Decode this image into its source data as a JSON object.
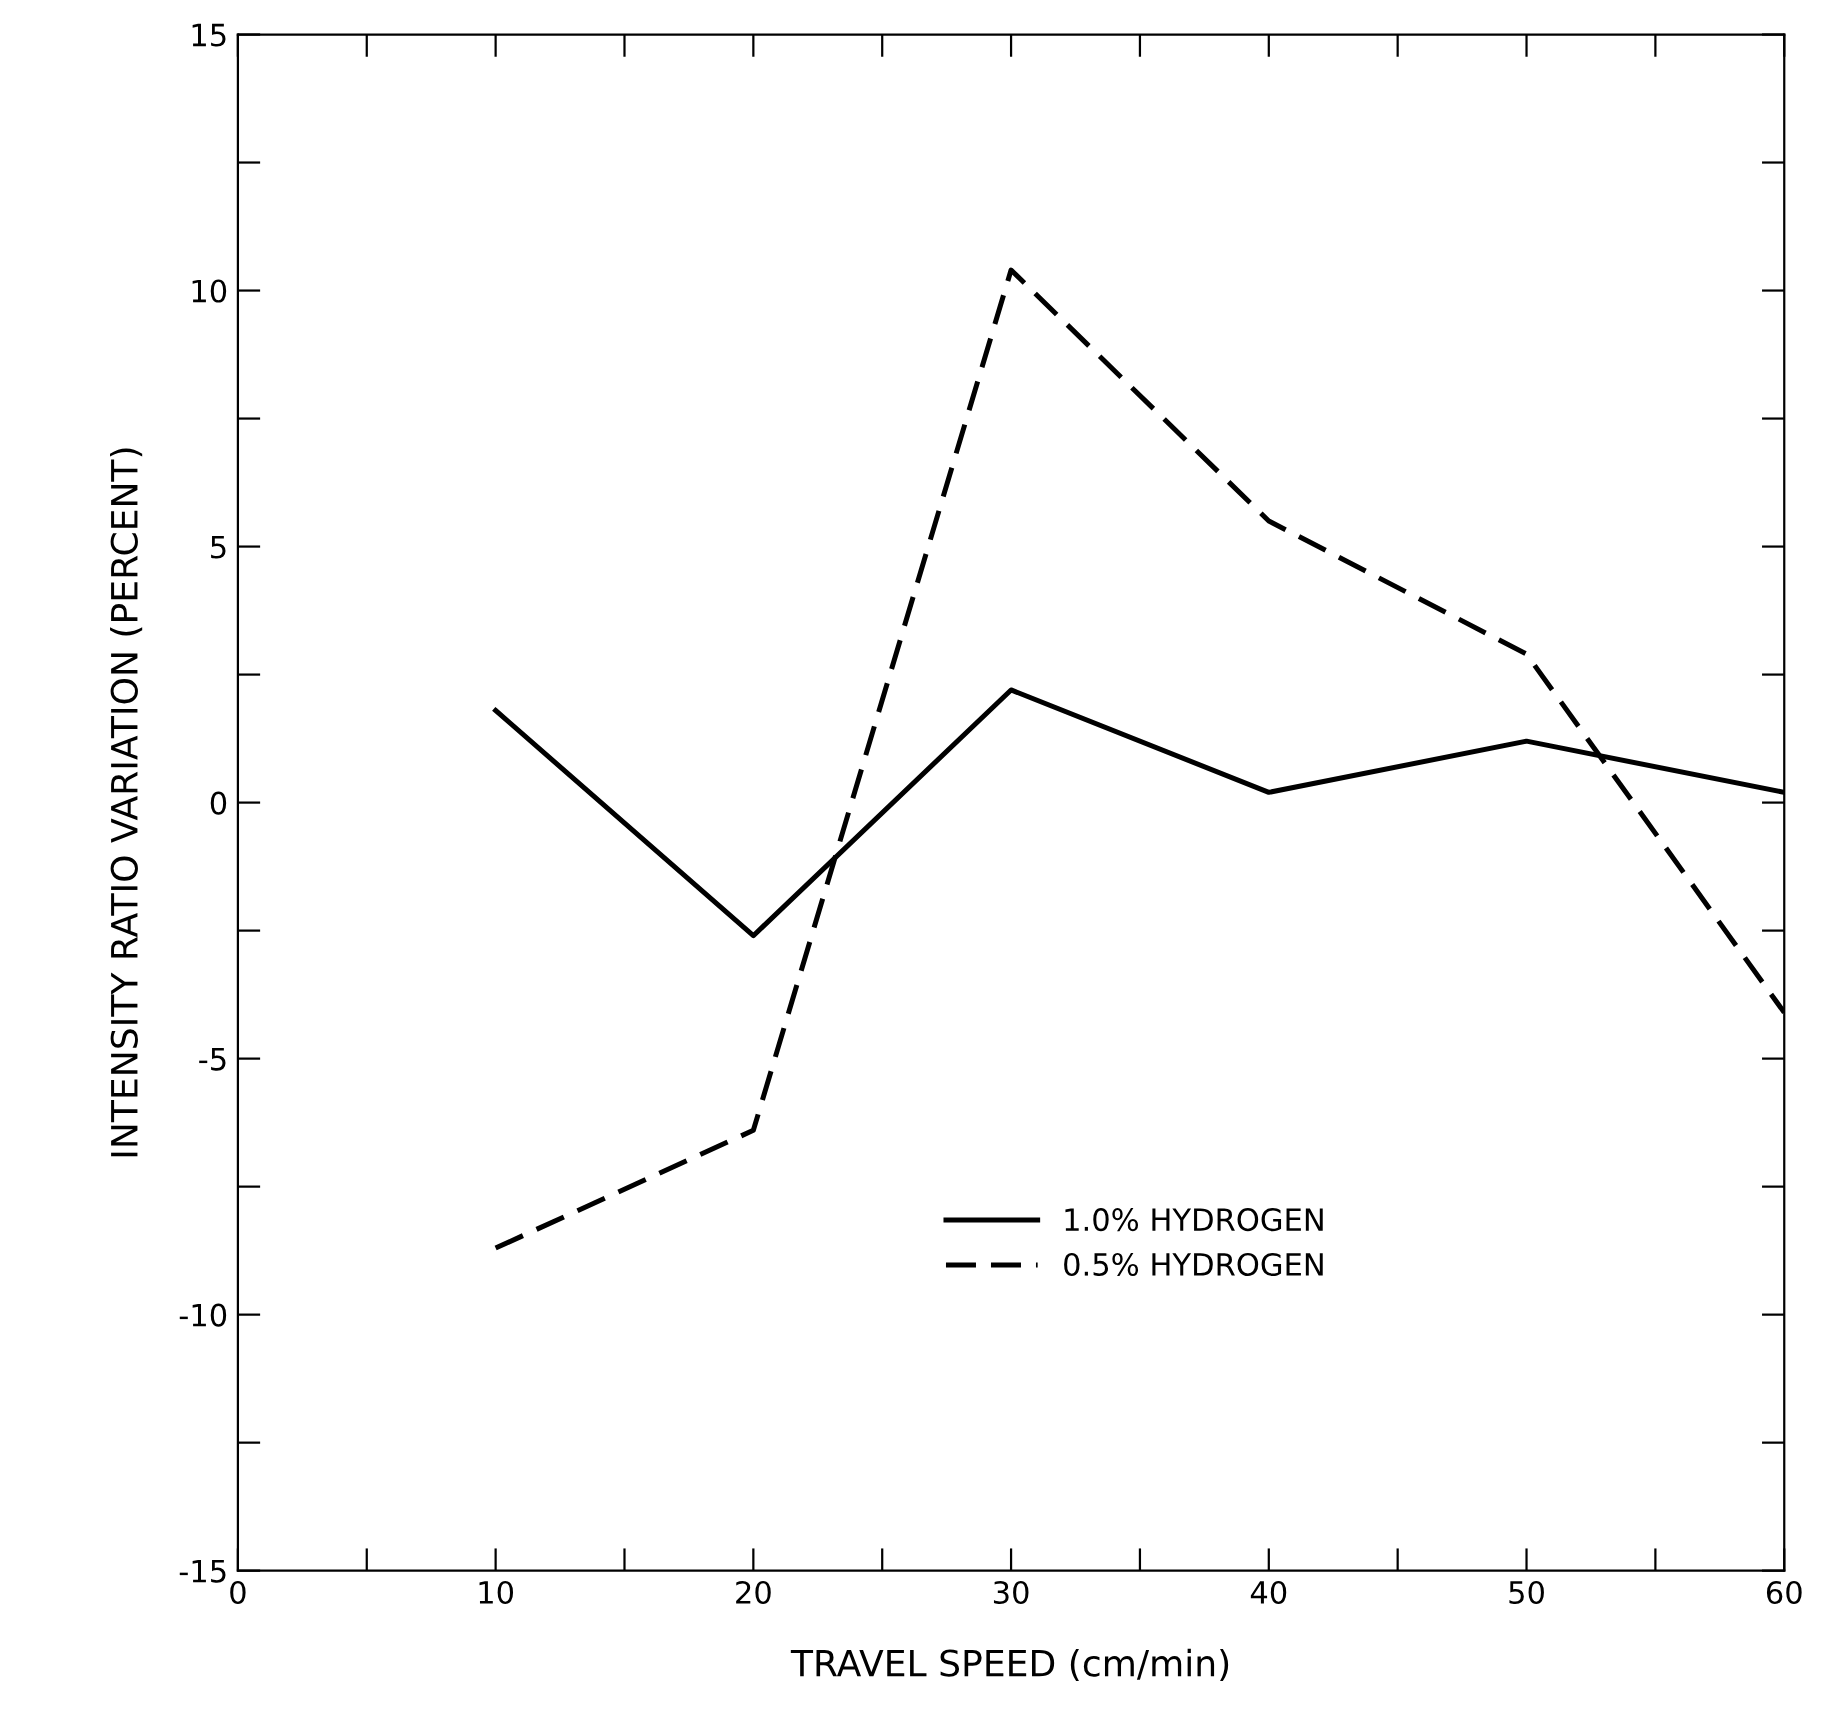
{
  "chart_data": {
    "type": "line",
    "xlabel": "TRAVEL SPEED (cm/min)",
    "ylabel": "INTENSITY RATIO VARIATION (PERCENT)",
    "x": [
      10,
      20,
      30,
      40,
      50,
      60
    ],
    "series": [
      {
        "name": "1.0% HYDROGEN",
        "color": "#000000",
        "line_style": "solid",
        "values": [
          1.8,
          -2.6,
          2.2,
          0.2,
          1.2,
          0.2
        ]
      },
      {
        "name": "0.5% HYDROGEN",
        "color": "#000000",
        "line_style": "dashed",
        "values": [
          -8.7,
          -6.4,
          10.4,
          5.5,
          2.9,
          -4.1
        ]
      }
    ],
    "xlim": [
      0,
      60
    ],
    "ylim": [
      -15,
      15
    ],
    "xticks": [
      0,
      {
        "value": 5,
        "label": null
      },
      10,
      {
        "value": 15,
        "label": null
      },
      20,
      {
        "value": 25,
        "label": null
      },
      30,
      {
        "value": 35,
        "label": null
      },
      40,
      {
        "value": 45,
        "label": null
      },
      50,
      {
        "value": 55,
        "label": null
      },
      60
    ],
    "yticks": [
      {
        "value": -15,
        "label": "-15"
      },
      {
        "value": -12.5,
        "label": null
      },
      {
        "value": -10,
        "label": "-10"
      },
      {
        "value": -7.5,
        "label": null
      },
      {
        "value": -5,
        "label": "-5"
      },
      {
        "value": -2.5,
        "label": null
      },
      0,
      {
        "value": 2.5,
        "label": null
      },
      5,
      {
        "value": 7.5,
        "label": null
      },
      10,
      {
        "value": 12.5,
        "label": null
      },
      15
    ],
    "grid": false,
    "legend": "bottom right",
    "marker": "none"
  }
}
